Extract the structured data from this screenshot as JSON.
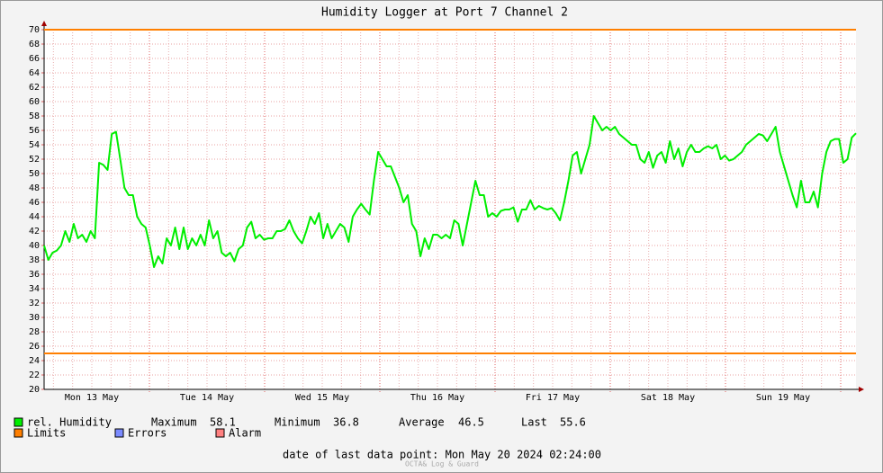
{
  "chart_data": {
    "type": "line",
    "title": "Humidity Logger at Port 7 Channel 2",
    "xtick_labels": [
      "Mon 13 May",
      "Tue 14 May",
      "Wed 15 May",
      "Thu 16 May",
      "Fri 17 May",
      "Sat 18 May",
      "Sun 19 May"
    ],
    "ylim": [
      20,
      70
    ],
    "yticks": [
      20,
      22,
      24,
      26,
      28,
      30,
      32,
      34,
      36,
      38,
      40,
      42,
      44,
      46,
      48,
      50,
      52,
      54,
      56,
      58,
      60,
      62,
      64,
      66,
      68,
      70
    ],
    "grid": true,
    "series": [
      {
        "name": "rel. Humidity",
        "color": "#00ee00",
        "values": [
          40,
          38,
          39,
          39.3,
          40,
          42,
          40.5,
          43,
          41,
          41.5,
          40.5,
          42,
          41,
          51.5,
          51.2,
          50.5,
          55.5,
          55.8,
          52,
          48,
          47,
          47,
          44,
          43,
          42.5,
          40,
          37,
          38.5,
          37.5,
          41,
          40,
          42.5,
          39.5,
          42.5,
          39.5,
          41,
          40,
          41.5,
          40,
          43.5,
          41,
          42,
          39,
          38.5,
          39,
          37.8,
          39.5,
          40,
          42.5,
          43.3,
          41,
          41.5,
          40.8,
          41,
          41,
          42,
          42,
          42.3,
          43.5,
          42,
          41,
          40.3,
          42,
          44,
          43,
          44.5,
          41,
          43,
          41,
          42,
          43,
          42.5,
          40.5,
          44,
          45,
          45.8,
          45,
          44.3,
          49,
          53,
          52,
          51,
          51,
          49.5,
          48,
          46,
          47,
          43,
          42,
          38.5,
          41,
          39.5,
          41.5,
          41.5,
          41,
          41.5,
          41,
          43.5,
          43,
          40,
          43,
          46,
          49,
          47,
          47,
          44,
          44.5,
          44,
          44.8,
          45,
          45,
          45.3,
          43.3,
          45,
          45,
          46.3,
          45,
          45.5,
          45.2,
          45,
          45.2,
          44.5,
          43.5,
          46,
          49,
          52.5,
          53,
          50,
          52,
          54,
          58,
          57,
          56,
          56.5,
          56,
          56.5,
          55.5,
          55,
          54.5,
          54,
          54,
          52,
          51.5,
          53,
          50.8,
          52.5,
          53,
          51.5,
          54.5,
          52,
          53.5,
          51,
          53,
          54,
          53,
          53,
          53.5,
          53.8,
          53.5,
          54,
          52,
          52.5,
          51.8,
          52,
          52.5,
          53,
          54,
          54.5,
          55,
          55.5,
          55.3,
          54.5,
          55.5,
          56.5,
          53,
          51,
          49,
          47,
          45.3,
          49,
          46,
          46,
          47.5,
          45.3,
          50,
          53,
          54.5,
          54.8,
          54.8,
          51.5,
          52,
          55,
          55.6
        ]
      }
    ],
    "limits": {
      "name": "Limits",
      "color": "#ff7f00",
      "values": [
        70,
        25
      ]
    },
    "legend_extra": [
      {
        "name": "Errors",
        "color": "#7b8bff"
      },
      {
        "name": "Alarm",
        "color": "#ff8080"
      }
    ],
    "stats": [
      {
        "label": "Maximum",
        "value": 58.1
      },
      {
        "label": "Minimum",
        "value": 36.8
      },
      {
        "label": "Average",
        "value": 46.5
      },
      {
        "label": "Last",
        "value": 55.6
      }
    ],
    "footer": "date of last data point:  Mon May 20 2024 02:24:00",
    "credit": "OCTA& Log & Guard"
  }
}
